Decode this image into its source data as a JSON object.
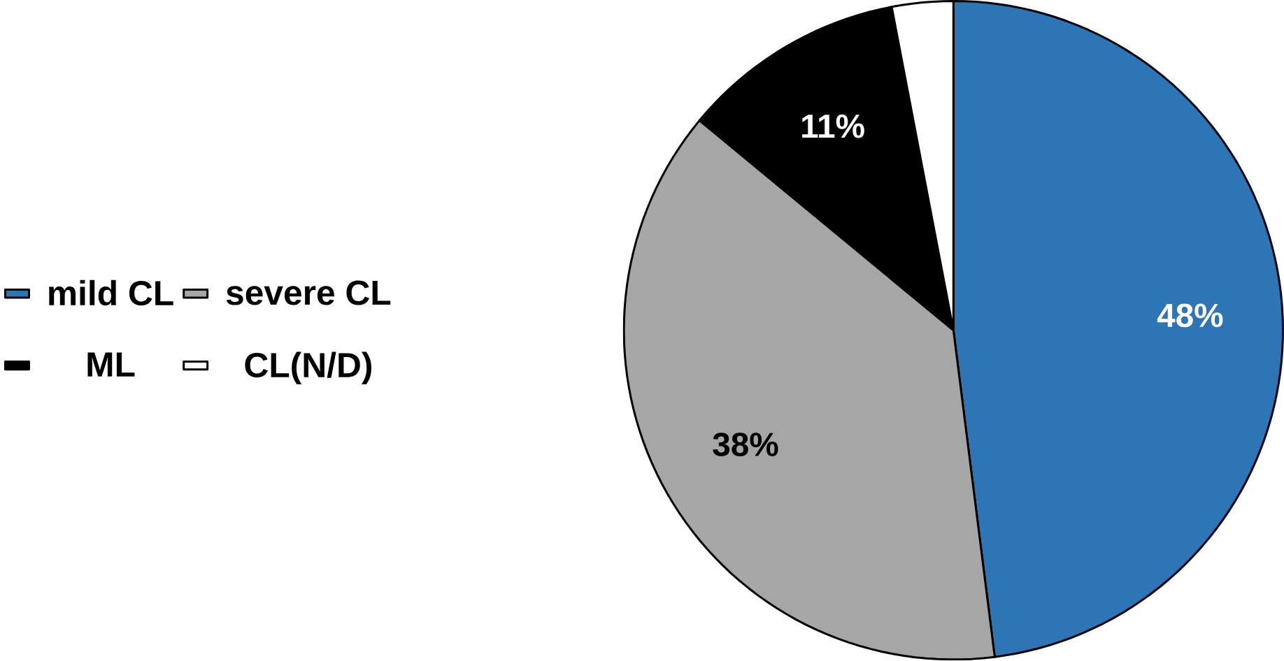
{
  "chart_data": {
    "type": "pie",
    "categories": [
      "mild CL",
      "severe CL",
      "ML",
      "CL(N/D)"
    ],
    "values": [
      48,
      38,
      11,
      3
    ],
    "colors": [
      "#2e75b6",
      "#a6a6a6",
      "#000000",
      "#ffffff"
    ],
    "value_labels": [
      "48%",
      "38%",
      "11%",
      null
    ],
    "legend": "left"
  }
}
